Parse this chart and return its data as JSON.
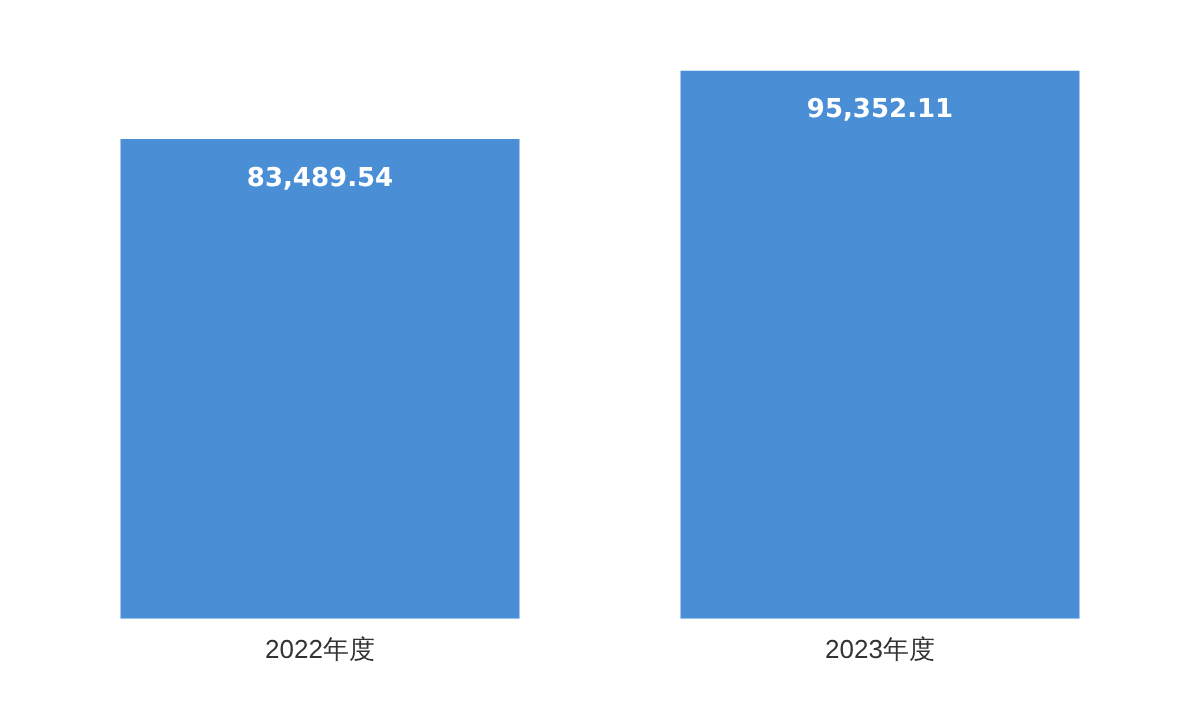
{
  "chart_data": {
    "type": "bar",
    "categories": [
      "2022年度",
      "2023年度"
    ],
    "values": [
      83489.54,
      95352.11
    ],
    "value_labels": [
      "83,489.54",
      "95,352.11"
    ],
    "color": "#4a8fd6",
    "grid": false,
    "legend": false,
    "tick_labels": "x"
  }
}
